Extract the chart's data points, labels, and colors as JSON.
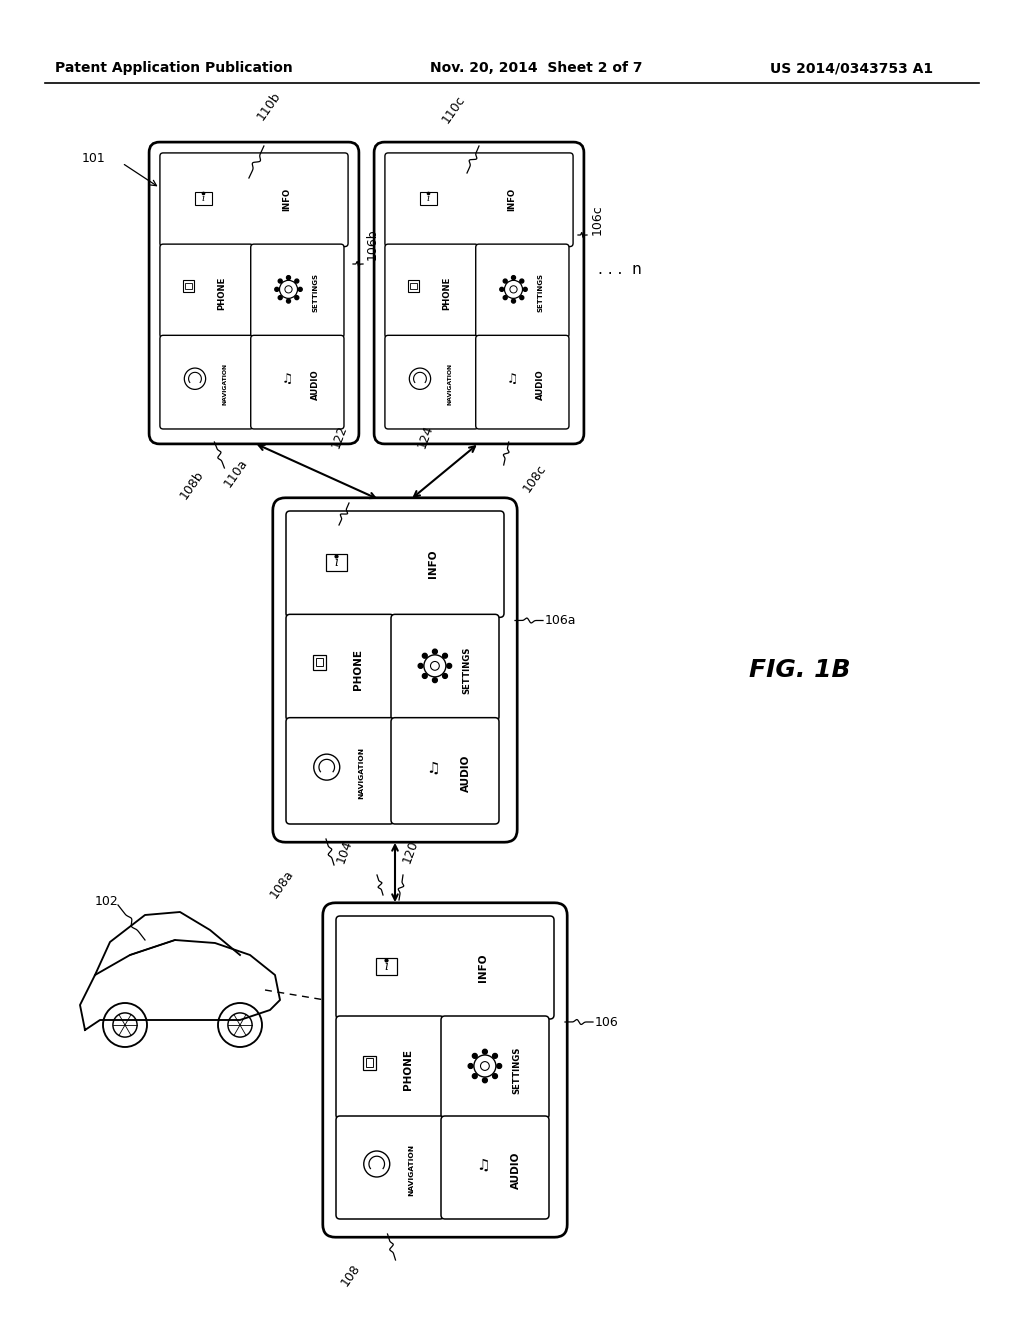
{
  "title_left": "Patent Application Publication",
  "title_center": "Nov. 20, 2014  Sheet 2 of 7",
  "title_right": "US 2014/0343753 A1",
  "fig_label": "FIG. 1B",
  "background_color": "#ffffff",
  "line_color": "#000000"
}
